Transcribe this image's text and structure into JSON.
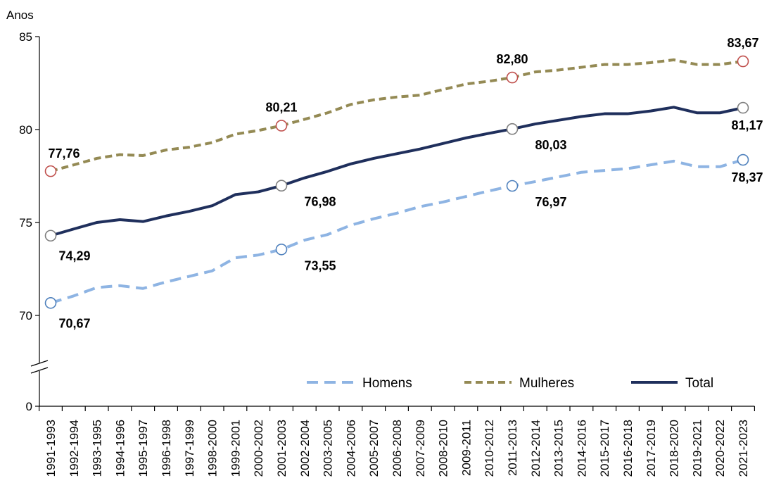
{
  "chart_data": {
    "type": "line",
    "ylabel": "Anos",
    "ylim": [
      0,
      85
    ],
    "yticks": [
      "0",
      "70",
      "75",
      "80",
      "85"
    ],
    "axis_break": true,
    "grid": false,
    "legend_position": "bottom-right",
    "categories": [
      "1991-1993",
      "1992-1994",
      "1993-1995",
      "1994-1996",
      "1995-1997",
      "1996-1998",
      "1997-1999",
      "1998-2000",
      "1999-2001",
      "2000-2002",
      "2001-2003",
      "2002-2004",
      "2003-2005",
      "2004-2006",
      "2005-2007",
      "2006-2008",
      "2007-2009",
      "2008-2010",
      "2009-2011",
      "2010-2012",
      "2011-2013",
      "2012-2014",
      "2013-2015",
      "2014-2016",
      "2015-2017",
      "2016-2018",
      "2017-2019",
      "2018-2020",
      "2019-2021",
      "2020-2022",
      "2021-2023"
    ],
    "series": [
      {
        "name": "Homens",
        "color": "#8EB4E3",
        "marker_color": "#4F81BD",
        "style": "dashed",
        "values": [
          70.67,
          71.05,
          71.5,
          71.6,
          71.45,
          71.8,
          72.1,
          72.4,
          73.1,
          73.25,
          73.55,
          74.05,
          74.35,
          74.85,
          75.2,
          75.5,
          75.85,
          76.1,
          76.4,
          76.7,
          76.97,
          77.2,
          77.45,
          77.7,
          77.8,
          77.9,
          78.1,
          78.3,
          78.0,
          78.0,
          78.37
        ],
        "labels": [
          {
            "index": 0,
            "text": "70,67",
            "pos": "below"
          },
          {
            "index": 10,
            "text": "73,55",
            "pos": "below-right"
          },
          {
            "index": 20,
            "text": "76,97",
            "pos": "below-right"
          },
          {
            "index": 30,
            "text": "78,37",
            "pos": "below"
          }
        ]
      },
      {
        "name": "Mulheres",
        "color": "#948A54",
        "marker_color": "#C0504D",
        "style": "dashed",
        "values": [
          77.76,
          78.1,
          78.45,
          78.65,
          78.6,
          78.9,
          79.05,
          79.3,
          79.75,
          79.95,
          80.21,
          80.55,
          80.9,
          81.35,
          81.6,
          81.75,
          81.85,
          82.15,
          82.45,
          82.6,
          82.8,
          83.1,
          83.2,
          83.35,
          83.5,
          83.5,
          83.6,
          83.75,
          83.5,
          83.5,
          83.67
        ],
        "labels": [
          {
            "index": 0,
            "text": "77,76",
            "pos": "above"
          },
          {
            "index": 10,
            "text": "80,21",
            "pos": "above"
          },
          {
            "index": 20,
            "text": "82,80",
            "pos": "above"
          },
          {
            "index": 30,
            "text": "83,67",
            "pos": "above"
          }
        ]
      },
      {
        "name": "Total",
        "color": "#1F2F5C",
        "marker_color": "#7F7F7F",
        "style": "solid",
        "values": [
          74.29,
          74.65,
          75.0,
          75.15,
          75.05,
          75.35,
          75.6,
          75.9,
          76.5,
          76.65,
          76.98,
          77.4,
          77.75,
          78.15,
          78.45,
          78.7,
          78.95,
          79.25,
          79.55,
          79.8,
          80.03,
          80.3,
          80.5,
          80.7,
          80.85,
          80.85,
          81.0,
          81.2,
          80.9,
          80.9,
          81.17
        ],
        "labels": [
          {
            "index": 0,
            "text": "74,29",
            "pos": "below"
          },
          {
            "index": 10,
            "text": "76,98",
            "pos": "below-right"
          },
          {
            "index": 20,
            "text": "80,03",
            "pos": "below-right"
          },
          {
            "index": 30,
            "text": "81,17",
            "pos": "below"
          }
        ]
      }
    ]
  }
}
